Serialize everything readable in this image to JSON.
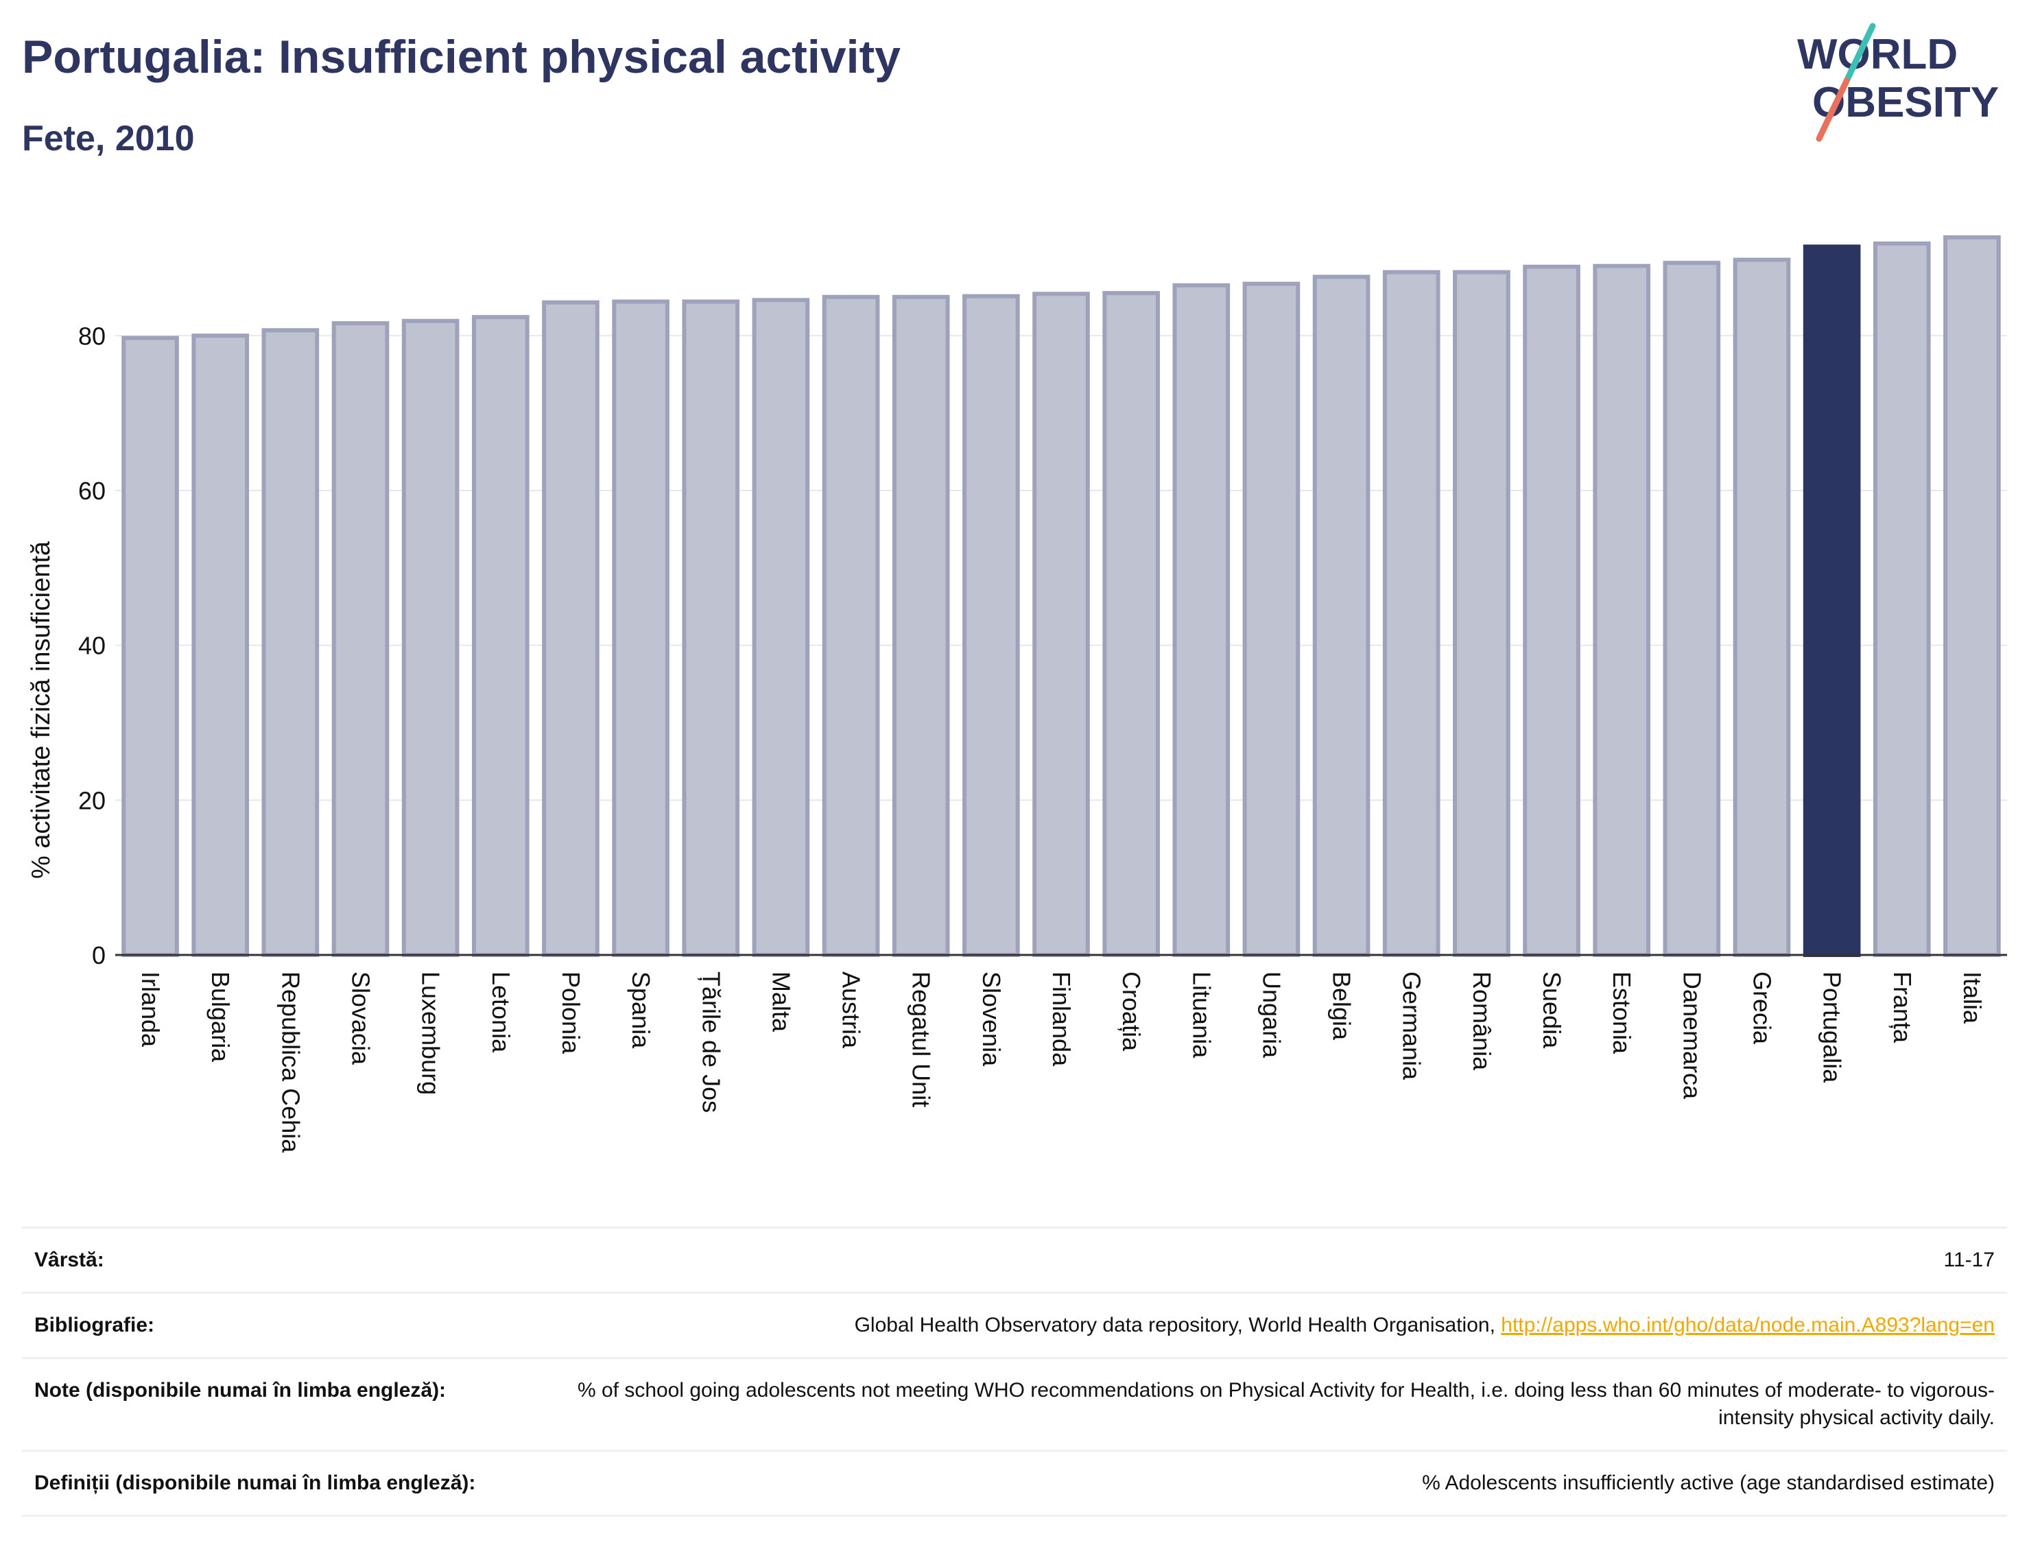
{
  "header": {
    "title": "Portugalia: Insufficient physical activity",
    "subtitle": "Fete, 2010"
  },
  "logo": {
    "line1": "WORLD",
    "line2": "OBESITY"
  },
  "colors": {
    "bar": "#bfc2d0",
    "bar_border": "#9ea3bb",
    "highlight": "#2b3561",
    "text": "#2d3560"
  },
  "chart_data": {
    "type": "bar",
    "categories": [
      "Irlanda",
      "Bulgaria",
      "Republica Cehia",
      "Slovacia",
      "Luxemburg",
      "Letonia",
      "Polonia",
      "Spania",
      "Țările de Jos",
      "Malta",
      "Austria",
      "Regatul Unit",
      "Slovenia",
      "Finlanda",
      "Croația",
      "Lituania",
      "Ungaria",
      "Belgia",
      "Germania",
      "România",
      "Suedia",
      "Estonia",
      "Danemarca",
      "Grecia",
      "Portugalia",
      "Franța",
      "Italia"
    ],
    "values": [
      79.7,
      80.0,
      80.7,
      81.6,
      81.9,
      82.4,
      84.3,
      84.4,
      84.4,
      84.6,
      85.0,
      85.0,
      85.1,
      85.4,
      85.5,
      86.5,
      86.7,
      87.6,
      88.2,
      88.2,
      88.9,
      89.0,
      89.4,
      89.8,
      91.5,
      91.9,
      92.7
    ],
    "highlight": "Portugalia",
    "ylabel": "% activitate fizică insuficientă",
    "xlabel": "",
    "ylim": [
      0,
      95
    ],
    "yticks": [
      0,
      20,
      40,
      60,
      80
    ],
    "grid": true
  },
  "meta": {
    "age_label": "Vârstă:",
    "age_value": "11-17",
    "bib_label": "Bibliografie:",
    "bib_value": "Global Health Observatory data repository, World Health Organisation,",
    "bib_link": "http://apps.who.int/gho/data/node.main.A893?lang=en",
    "notes_label": "Note (disponibile numai în limba engleză):",
    "notes_value": "% of school going adolescents not meeting WHO recommendations on Physical Activity for Health, i.e. doing less than 60 minutes of moderate- to vigorous-intensity physical activity daily.",
    "def_label": "Definiții (disponibile numai în limba engleză):",
    "def_value": "% Adolescents insufficiently active (age standardised estimate)"
  }
}
